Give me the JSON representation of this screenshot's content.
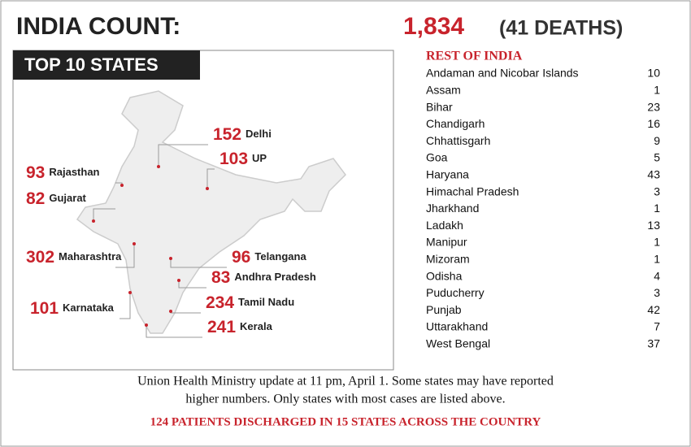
{
  "header": {
    "title": "INDIA COUNT:",
    "total": "1,834",
    "deaths": "(41 DEATHS)"
  },
  "map": {
    "title": "TOP 10 STATES",
    "labels": [
      {
        "count": 152,
        "state": "Delhi"
      },
      {
        "count": 103,
        "state": "UP"
      },
      {
        "count": 93,
        "state": "Rajasthan"
      },
      {
        "count": 82,
        "state": "Gujarat"
      },
      {
        "count": 302,
        "state": "Maharashtra"
      },
      {
        "count": 96,
        "state": "Telangana"
      },
      {
        "count": 83,
        "state": "Andhra Pradesh"
      },
      {
        "count": 101,
        "state": "Karnataka"
      },
      {
        "count": 234,
        "state": "Tamil Nadu"
      },
      {
        "count": 241,
        "state": "Kerala"
      }
    ]
  },
  "table": {
    "title": "REST OF INDIA",
    "rows": [
      [
        "Andaman and Nicobar Islands",
        10
      ],
      [
        "Assam",
        1
      ],
      [
        "Bihar",
        23
      ],
      [
        "Chandigarh",
        16
      ],
      [
        "Chhattisgarh",
        9
      ],
      [
        "Goa",
        5
      ],
      [
        "Haryana",
        43
      ],
      [
        "Himachal Pradesh",
        3
      ],
      [
        "Jharkhand",
        1
      ],
      [
        "Ladakh",
        13
      ],
      [
        "Manipur",
        1
      ],
      [
        "Mizoram",
        1
      ],
      [
        "Odisha",
        4
      ],
      [
        "Puducherry",
        3
      ],
      [
        "Punjab",
        42
      ],
      [
        "Uttarakhand",
        7
      ],
      [
        "West Bengal",
        37
      ]
    ]
  },
  "footer": {
    "note_line1": "Union Health Ministry update at 11 pm, April 1. Some states may have reported",
    "note_line2": "higher numbers. Only states with most cases are listed above.",
    "highlight": "124 PATIENTS DISCHARGED IN 15 STATES ACROSS THE COUNTRY"
  }
}
